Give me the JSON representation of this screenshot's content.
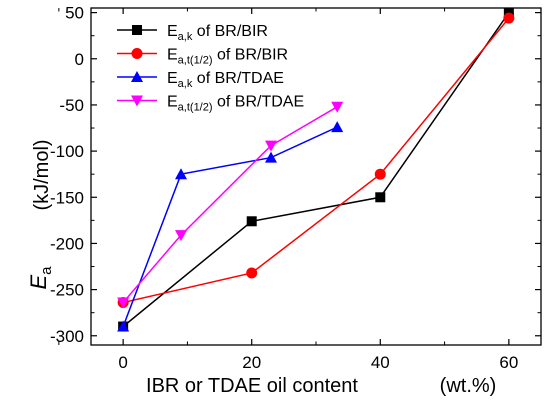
{
  "chart_data": {
    "type": "line",
    "title": "",
    "xlabel": "IBR or TDAE oil content",
    "xlabel_unit": "(wt.%)",
    "ylabel_symbol": "E",
    "ylabel_subscript": "a",
    "ylabel_unit": "(kJ/mol)",
    "xlim": [
      -5,
      65
    ],
    "ylim": [
      -310,
      55
    ],
    "xticks": [
      0,
      20,
      40,
      60
    ],
    "yticks": [
      -300,
      -250,
      -200,
      -150,
      -100,
      -50,
      0,
      50
    ],
    "legend_position": "top-left",
    "series": [
      {
        "name_main": "E",
        "name_sub": "a,k",
        "name_rest": " of BR/BIR",
        "color": "#000000",
        "marker": "square",
        "x": [
          0,
          20,
          40,
          60
        ],
        "y": [
          -290,
          -176,
          -150,
          50
        ]
      },
      {
        "name_main": "E",
        "name_sub": "a,t(1/2)",
        "name_rest": " of BR/BIR",
        "color": "#ff0000",
        "marker": "circle",
        "x": [
          0,
          20,
          40,
          60
        ],
        "y": [
          -264,
          -232,
          -125,
          44
        ]
      },
      {
        "name_main": "E",
        "name_sub": "a,k",
        "name_rest": " of BR/TDAE",
        "color": "#0000ff",
        "marker": "triangle-up",
        "x": [
          0,
          9,
          23,
          33.3
        ],
        "y": [
          -290,
          -125,
          -107,
          -74
        ]
      },
      {
        "name_main": "E",
        "name_sub": "a,t(1/2)",
        "name_rest": " of BR/TDAE",
        "color": "#ff00ff",
        "marker": "triangle-down",
        "x": [
          0,
          9,
          23,
          33.3
        ],
        "y": [
          -264,
          -191,
          -94,
          -52
        ]
      }
    ]
  }
}
